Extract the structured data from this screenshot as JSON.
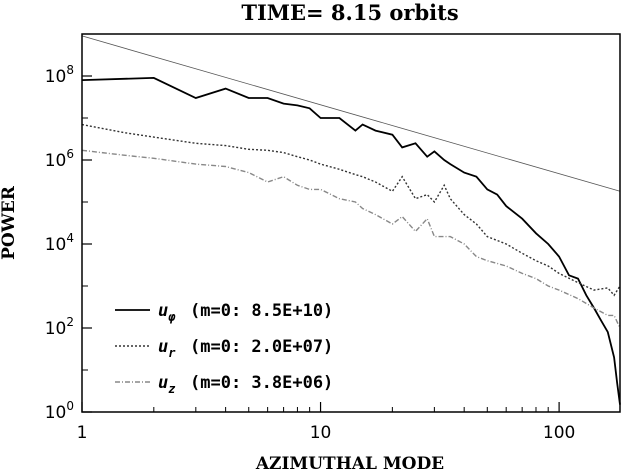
{
  "chart_data": {
    "type": "line",
    "title": "TIME= 8.15 orbits",
    "xlabel": "AZIMUTHAL MODE",
    "ylabel": "POWER",
    "xscale": "log",
    "yscale": "log",
    "xlim": [
      1,
      180
    ],
    "ylim": [
      1,
      1000000000.0
    ],
    "grid": false,
    "legend_position": "bottom-left",
    "x_ticks": [
      {
        "value": 1,
        "label": "1"
      },
      {
        "value": 10,
        "label": "10"
      },
      {
        "value": 100,
        "label": "100"
      }
    ],
    "y_ticks": [
      {
        "value": 1,
        "base": "10",
        "exp": "0"
      },
      {
        "value": 100,
        "base": "10",
        "exp": "2"
      },
      {
        "value": 10000,
        "base": "10",
        "exp": "4"
      },
      {
        "value": 1000000,
        "base": "10",
        "exp": "6"
      },
      {
        "value": 100000000,
        "base": "10",
        "exp": "8"
      }
    ],
    "series": [
      {
        "legend_symbol": "u",
        "legend_subscript": "φ",
        "legend_text": "(m=0: 8.5E+10)",
        "color": "#000000",
        "style": "solid",
        "x": [
          1,
          2,
          3,
          4,
          5,
          6,
          7,
          8,
          9,
          10,
          12,
          14,
          15,
          17,
          20,
          22,
          25,
          28,
          30,
          33,
          35,
          40,
          45,
          50,
          55,
          60,
          70,
          80,
          90,
          100,
          110,
          120,
          130,
          140,
          150,
          160,
          170,
          175,
          180
        ],
        "y": [
          80000000.0,
          90000000.0,
          30000000.0,
          50000000.0,
          30000000.0,
          30000000.0,
          22000000.0,
          20000000.0,
          17000000.0,
          10000000.0,
          10000000.0,
          5000000.0,
          7000000.0,
          5000000.0,
          4000000.0,
          2000000.0,
          2500000.0,
          1200000.0,
          1600000.0,
          1000000.0,
          800000.0,
          500000.0,
          400000.0,
          200000.0,
          150000.0,
          80000.0,
          40000.0,
          18000.0,
          10000.0,
          5000,
          1800,
          1500,
          600,
          300,
          150,
          80,
          20,
          5,
          1.5
        ]
      },
      {
        "legend_symbol": "u",
        "legend_subscript": "r",
        "legend_text": "(m=0: 2.0E+07)",
        "color": "#333333",
        "style": "dotted",
        "x": [
          1,
          1.5,
          2,
          3,
          4,
          5,
          6,
          7,
          8,
          9,
          10,
          12,
          14,
          15,
          17,
          20,
          22,
          25,
          28,
          30,
          33,
          35,
          40,
          45,
          50,
          60,
          70,
          80,
          90,
          100,
          120,
          140,
          160,
          170,
          180
        ],
        "y": [
          7000000.0,
          4500000.0,
          3500000.0,
          2500000.0,
          2200000.0,
          1800000.0,
          1700000.0,
          1500000.0,
          1200000.0,
          1000000.0,
          800000.0,
          600000.0,
          450000.0,
          400000.0,
          300000.0,
          180000.0,
          400000.0,
          120000.0,
          150000.0,
          100000.0,
          250000.0,
          120000.0,
          50000.0,
          30000.0,
          15000.0,
          10000.0,
          6000,
          4000,
          3000,
          2000,
          1200,
          800,
          900,
          600,
          1000
        ]
      },
      {
        "legend_symbol": "u",
        "legend_subscript": "z",
        "legend_text": "(m=0: 3.8E+06)",
        "color": "#888888",
        "style": "dashdot",
        "x": [
          1,
          1.5,
          2,
          3,
          4,
          5,
          6,
          7,
          8,
          9,
          10,
          12,
          14,
          15,
          17,
          20,
          22,
          25,
          28,
          30,
          35,
          40,
          45,
          50,
          60,
          70,
          80,
          90,
          100,
          120,
          140,
          160,
          170,
          180
        ],
        "y": [
          1700000.0,
          1300000.0,
          1100000.0,
          800000.0,
          700000.0,
          500000.0,
          300000.0,
          400000.0,
          250000.0,
          200000.0,
          200000.0,
          120000.0,
          100000.0,
          70000.0,
          50000.0,
          30000.0,
          45000.0,
          20000.0,
          40000.0,
          15000.0,
          15000.0,
          10000.0,
          5000.0,
          4000.0,
          3000.0,
          2000.0,
          1500.0,
          1000.0,
          800.0,
          500,
          300,
          200,
          200,
          100
        ]
      },
      {
        "legend_symbol": "",
        "legend_subscript": "",
        "legend_text": "",
        "color": "#555555",
        "style": "thin",
        "x": [
          1,
          180
        ],
        "y": [
          900000000.0,
          180000.0
        ]
      }
    ]
  }
}
